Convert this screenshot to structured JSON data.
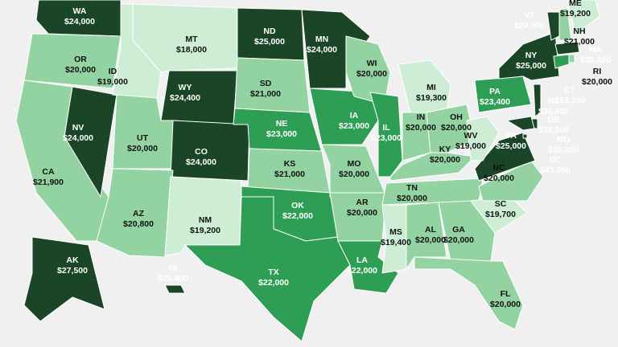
{
  "chart_data": {
    "type": "map",
    "categories": [
      "WA",
      "OR",
      "CA",
      "NV",
      "ID",
      "MT",
      "WY",
      "UT",
      "CO",
      "AZ",
      "NM",
      "ND",
      "SD",
      "NE",
      "KS",
      "OK",
      "TX",
      "MN",
      "IA",
      "MO",
      "AR",
      "LA",
      "WI",
      "IL",
      "MI",
      "IN",
      "OH",
      "KY",
      "TN",
      "MS",
      "AL",
      "GA",
      "FL",
      "SC",
      "NC",
      "VA",
      "WV",
      "PA",
      "NY",
      "VT",
      "NH",
      "ME",
      "MA",
      "RI",
      "CT",
      "NJ",
      "DE",
      "MD",
      "DC",
      "AK",
      "HI"
    ],
    "values": [
      24000,
      20000,
      21900,
      24000,
      19000,
      18000,
      24400,
      20000,
      24000,
      20800,
      19200,
      25000,
      21000,
      23000,
      21000,
      22000,
      22000,
      24000,
      23000,
      20000,
      20000,
      22000,
      20000,
      23000,
      19300,
      20000,
      20000,
      20000,
      20000,
      19400,
      20000,
      20000,
      20000,
      19700,
      20000,
      25000,
      19000,
      23400,
      25000,
      24000,
      21000,
      19200,
      25000,
      20000,
      23300,
      25000,
      25000,
      26000,
      43000,
      27500,
      25900
    ],
    "value_labels": [
      "$24,000",
      "$20,000",
      "$21,900",
      "$24,000",
      "$19,000",
      "$18,000",
      "$24,400",
      "$20,000",
      "$24,000",
      "$20,800",
      "$19,200",
      "$25,000",
      "$21,000",
      "$23,000",
      "$21,000",
      "$22,000",
      "$22,000",
      "$24,000",
      "$23,000",
      "$20,000",
      "$20,000",
      "$22,000",
      "$20,000",
      "$23,000",
      "$19,300",
      "$20,000",
      "$20,000",
      "$20,000",
      "$20,000",
      "$19,400",
      "$20,000",
      "$20,000",
      "$20,000",
      "$19,700",
      "$20,000",
      "$25,000",
      "$19,000",
      "$23,400",
      "$25,000",
      "$24,000",
      "$21,000",
      "$19,200",
      "$25,000",
      "$20,000",
      "$23,300",
      "$25,000",
      "$25,000",
      "$26,000",
      "$43,000",
      "$27,500",
      "$25,900"
    ],
    "colors": [
      "#1b4527",
      "#93d3a2",
      "#93d3a2",
      "#1b4527",
      "#cdeed5",
      "#cdeed5",
      "#1b4527",
      "#93d3a2",
      "#1b4527",
      "#93d3a2",
      "#cdeed5",
      "#1b4527",
      "#93d3a2",
      "#2f9e55",
      "#93d3a2",
      "#2f9e55",
      "#2f9e55",
      "#1b4527",
      "#2f9e55",
      "#93d3a2",
      "#93d3a2",
      "#2f9e55",
      "#93d3a2",
      "#2f9e55",
      "#cdeed5",
      "#93d3a2",
      "#93d3a2",
      "#93d3a2",
      "#93d3a2",
      "#cdeed5",
      "#93d3a2",
      "#93d3a2",
      "#93d3a2",
      "#cdeed5",
      "#93d3a2",
      "#1b4527",
      "#cdeed5",
      "#2f9e55",
      "#1b4527",
      "#1b4527",
      "#93d3a2",
      "#cdeed5",
      "#1b4527",
      "#93d3a2",
      "#2f9e55",
      "#1b4527",
      "#1b4527",
      "#1b4527",
      "#1b4527",
      "#1b4527",
      "#1b4527"
    ]
  }
}
